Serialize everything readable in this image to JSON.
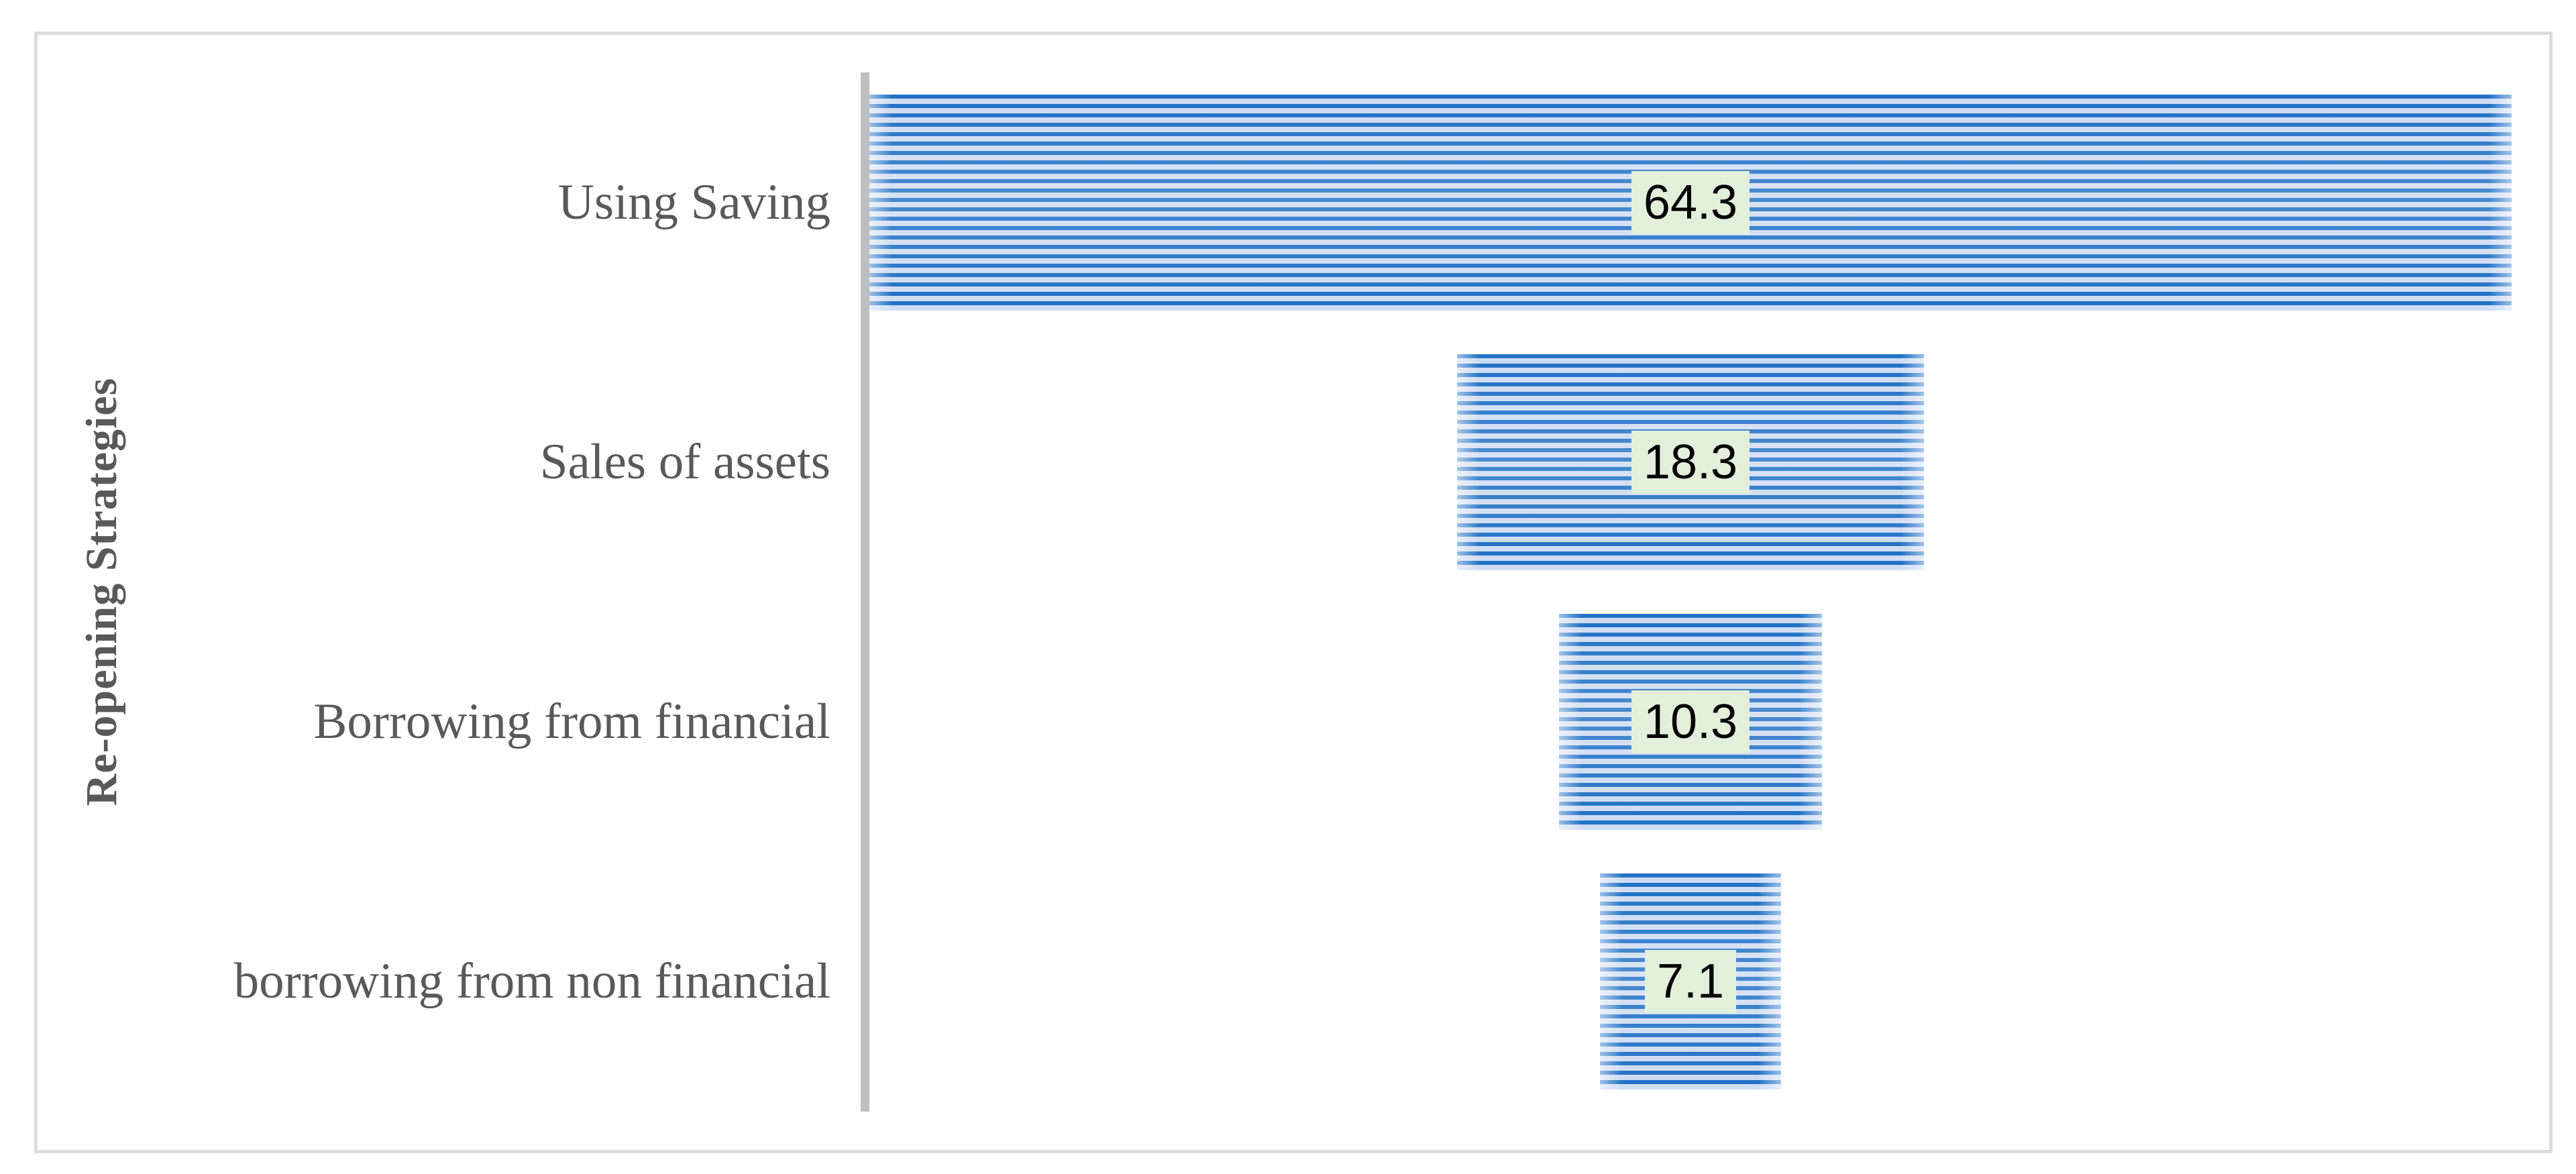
{
  "chart_data": {
    "type": "bar",
    "subtype": "funnel-centered-horizontal-bars",
    "categories": [
      "Using Saving",
      "Sales of assets",
      "Borrowing from financial",
      "borrowing from non financial"
    ],
    "values": [
      64.3,
      18.3,
      10.3,
      7.1
    ],
    "data_labels": [
      "64.3",
      "18.3",
      "10.3",
      "7.1"
    ],
    "title": "",
    "xlabel": "",
    "ylabel": "Re-opening Strategies",
    "xlim": [
      0,
      64.3
    ],
    "grid": false,
    "legend": false,
    "data_label_position": "center-of-bar",
    "bar_fill_pattern": "horizontal-stripes"
  },
  "colors": {
    "bar_stripe_dark": "#2272c6",
    "bar_stripe_light": "#cfdcf3",
    "data_label_bg": "#e2efda",
    "data_label_text": "#000000",
    "category_text": "#595959",
    "axis_line": "#bfbfbf",
    "frame_border": "#dcdcdc",
    "background": "#ffffff"
  }
}
